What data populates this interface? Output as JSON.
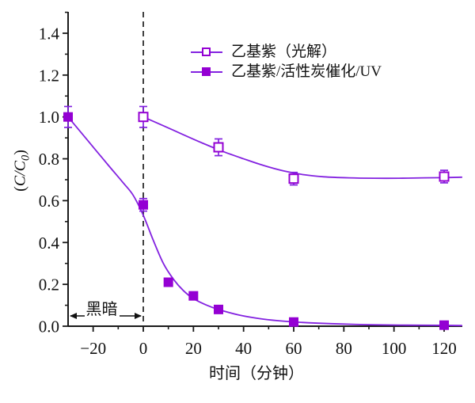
{
  "figure": {
    "background": "#ffffff",
    "colors": {
      "axis": "#1a1a1a",
      "text": "#111111",
      "line": "#8322e0",
      "marker": "#9400d3",
      "dashed_line": "#2b2b2b",
      "annotation": "#111111"
    }
  },
  "chart_data": {
    "type": "line",
    "title": "",
    "xlabel": "时间（分钟）",
    "ylabel": "(C/C0)",
    "ylabel_parts": {
      "open": "(",
      "main": "C/C",
      "sub": "0",
      "close": ")"
    },
    "xlim": [
      -30,
      127
    ],
    "ylim": [
      0,
      1.5
    ],
    "grid": false,
    "legend_position": "upper-center-inside",
    "x_axis": {
      "major_ticks": [
        -20,
        0,
        20,
        40,
        60,
        80,
        100,
        120
      ],
      "major_labels": [
        "−20",
        "0",
        "20",
        "40",
        "60",
        "80",
        "100",
        "120"
      ],
      "minor_ticks": [
        -10,
        10,
        30,
        50,
        70,
        90,
        110
      ]
    },
    "y_axis": {
      "major_ticks": [
        0.0,
        0.2,
        0.4,
        0.6,
        0.8,
        1.0,
        1.2,
        1.4
      ],
      "major_labels": [
        "0.0",
        "0.2",
        "0.4",
        "0.6",
        "0.8",
        "1.0",
        "1.2",
        "1.4"
      ],
      "minor_ticks": [
        0.1,
        0.3,
        0.5,
        0.7,
        0.9,
        1.1,
        1.3,
        1.5
      ]
    },
    "legend": {
      "entries": [
        {
          "label": "乙基紫（光解）",
          "marker": "open-square"
        },
        {
          "label": "乙基紫/活性炭催化/UV",
          "marker": "filled-square"
        }
      ]
    },
    "series": [
      {
        "name": "乙基紫（光解）",
        "marker": "open-square",
        "points": [
          {
            "x": 0,
            "y": 1.0,
            "err": 0.05
          },
          {
            "x": 30,
            "y": 0.855,
            "err": 0.04
          },
          {
            "x": 60,
            "y": 0.705,
            "err": 0.03
          },
          {
            "x": 120,
            "y": 0.715,
            "err": 0.03
          }
        ],
        "curve": [
          [
            0,
            1.0
          ],
          [
            8,
            0.958
          ],
          [
            16,
            0.915
          ],
          [
            24,
            0.873
          ],
          [
            32,
            0.834
          ],
          [
            40,
            0.8
          ],
          [
            48,
            0.768
          ],
          [
            56,
            0.742
          ],
          [
            64,
            0.724
          ],
          [
            72,
            0.714
          ],
          [
            82,
            0.709
          ],
          [
            92,
            0.707
          ],
          [
            102,
            0.707
          ],
          [
            112,
            0.709
          ],
          [
            120,
            0.71
          ],
          [
            127,
            0.712
          ]
        ]
      },
      {
        "name": "乙基紫/活性炭催化/UV",
        "marker": "filled-square",
        "points": [
          {
            "x": -30,
            "y": 1.0,
            "err": 0.05
          },
          {
            "x": 0,
            "y": 0.58,
            "err": 0.03
          },
          {
            "x": 10,
            "y": 0.21,
            "err": 0
          },
          {
            "x": 20,
            "y": 0.145,
            "err": 0
          },
          {
            "x": 30,
            "y": 0.08,
            "err": 0
          },
          {
            "x": 60,
            "y": 0.02,
            "err": 0
          },
          {
            "x": 120,
            "y": 0.005,
            "err": 0
          }
        ],
        "curve": [
          [
            -30,
            1.0
          ],
          [
            -22,
            0.885
          ],
          [
            -14,
            0.77
          ],
          [
            -8,
            0.685
          ],
          [
            -4,
            0.625
          ],
          [
            0,
            0.53
          ],
          [
            4,
            0.41
          ],
          [
            8,
            0.3
          ],
          [
            12,
            0.225
          ],
          [
            16,
            0.17
          ],
          [
            20,
            0.132
          ],
          [
            25,
            0.102
          ],
          [
            30,
            0.08
          ],
          [
            38,
            0.054
          ],
          [
            46,
            0.037
          ],
          [
            54,
            0.026
          ],
          [
            62,
            0.019
          ],
          [
            75,
            0.012
          ],
          [
            90,
            0.007
          ],
          [
            105,
            0.005
          ],
          [
            120,
            0.004
          ],
          [
            127,
            0.003
          ]
        ]
      }
    ],
    "annotations": {
      "dashed_vline_x": 0,
      "dark_phase": {
        "label": "黑暗",
        "from_x": -30,
        "to_x": 0
      }
    }
  }
}
